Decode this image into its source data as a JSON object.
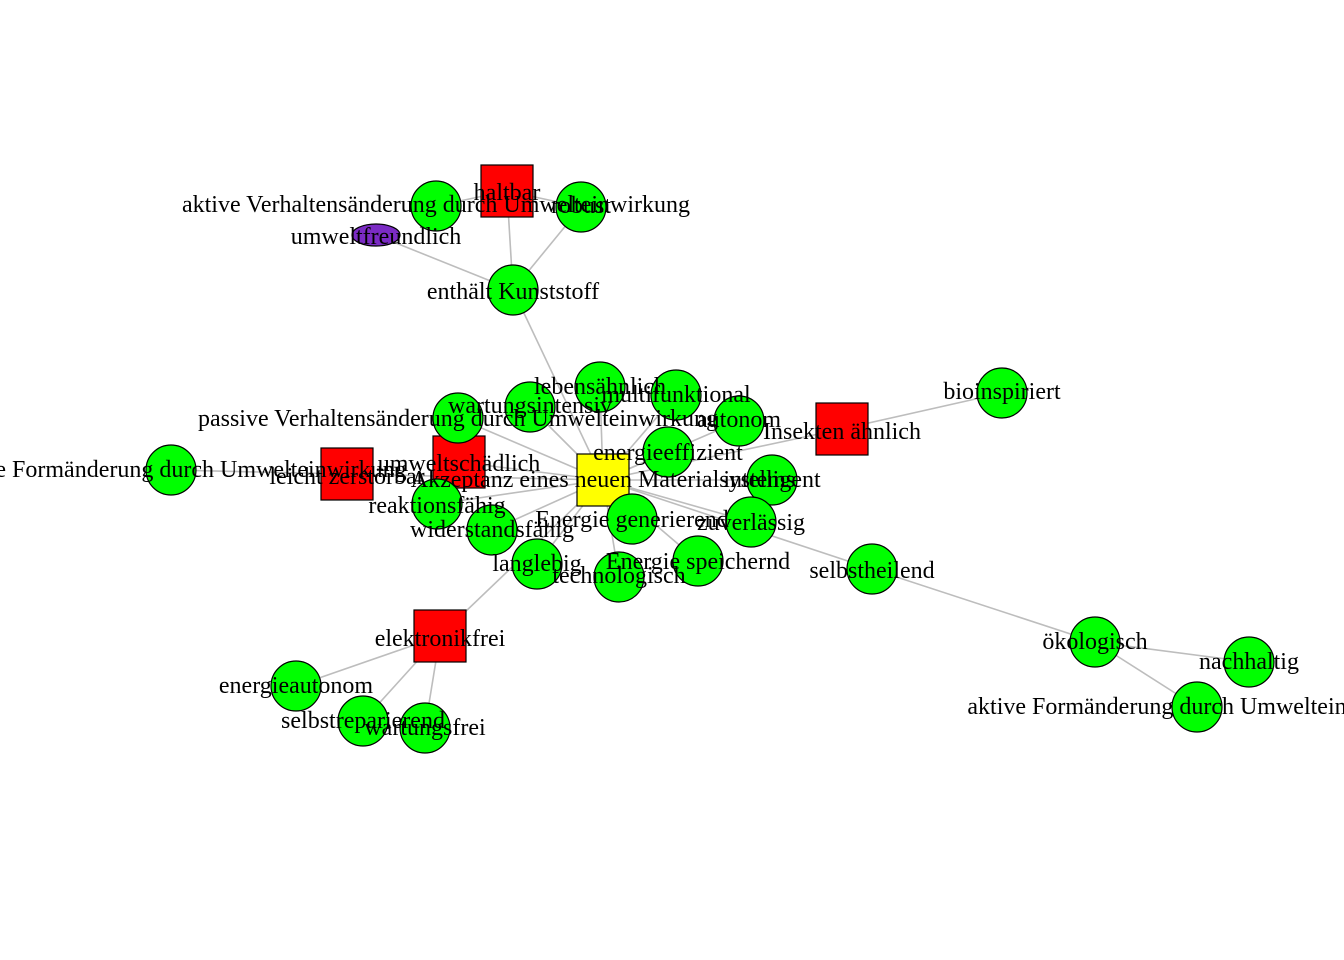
{
  "colors": {
    "property": "#00ff00",
    "criterion": "#ff0000",
    "center": "#ffff00",
    "special": "#7b2bc4",
    "edge": "#bdbdbd"
  },
  "nodes": [
    {
      "id": "center",
      "label": "Akzeptanz eines neuen Materialsystems",
      "kind": "center"
    },
    {
      "id": "haltbar",
      "label": "haltbar",
      "kind": "criterion"
    },
    {
      "id": "umweltschaedlich",
      "label": "umweltschädlich",
      "kind": "criterion"
    },
    {
      "id": "leicht_zerstoerbar",
      "label": "leicht zerstörbar",
      "kind": "criterion"
    },
    {
      "id": "insekten_aehnlich",
      "label": "Insekten ähnlich",
      "kind": "criterion"
    },
    {
      "id": "elektronikfrei",
      "label": "elektronikfrei",
      "kind": "criterion"
    },
    {
      "id": "umweltfreundlich",
      "label": "umweltfreundlich",
      "kind": "special"
    },
    {
      "id": "aktive_verhalten",
      "label": "aktive Verhaltensänderung durch Umwelteinwirkung",
      "kind": "property"
    },
    {
      "id": "robust",
      "label": "robust",
      "kind": "property"
    },
    {
      "id": "enthaelt_kunststoff",
      "label": "enthält Kunststoff",
      "kind": "property"
    },
    {
      "id": "lebensaehnlich",
      "label": "lebensähnlich",
      "kind": "property"
    },
    {
      "id": "multifunktional",
      "label": "multifunktional",
      "kind": "property"
    },
    {
      "id": "wartungsintensiv",
      "label": "wartungsintensiv",
      "kind": "property"
    },
    {
      "id": "passive_verhalten",
      "label": "passive Verhaltensänderung durch Umwelteinwirkung",
      "kind": "property"
    },
    {
      "id": "autonom",
      "label": "autonom",
      "kind": "property"
    },
    {
      "id": "bioinspiriert",
      "label": "bioinspiriert",
      "kind": "property"
    },
    {
      "id": "energieeffizient",
      "label": "energieeffizient",
      "kind": "property"
    },
    {
      "id": "intelligent",
      "label": "intelligent",
      "kind": "property"
    },
    {
      "id": "passive_form",
      "label": "passive Formänderung durch Umwelteinwirkung",
      "kind": "property"
    },
    {
      "id": "reaktionsfaehig",
      "label": "reaktionsfähig",
      "kind": "property"
    },
    {
      "id": "widerstandsfaehig",
      "label": "widerstandsfähig",
      "kind": "property"
    },
    {
      "id": "energie_generierend",
      "label": "Energie generierend",
      "kind": "property"
    },
    {
      "id": "zuverlaessig",
      "label": "zuverlässig",
      "kind": "property"
    },
    {
      "id": "langlebig",
      "label": "langlebig",
      "kind": "property"
    },
    {
      "id": "energie_speichernd",
      "label": "Energie speichernd",
      "kind": "property"
    },
    {
      "id": "technologisch",
      "label": "technologisch",
      "kind": "property"
    },
    {
      "id": "selbstheilend",
      "label": "selbstheilend",
      "kind": "property"
    },
    {
      "id": "oekologisch",
      "label": "ökologisch",
      "kind": "property"
    },
    {
      "id": "nachhaltig",
      "label": "nachhaltig",
      "kind": "property"
    },
    {
      "id": "aktive_form",
      "label": "aktive Formänderung durch Umwelteinwirkung",
      "kind": "property"
    },
    {
      "id": "energieautonom",
      "label": "energieautonom",
      "kind": "property"
    },
    {
      "id": "selbstreparierend",
      "label": "selbstreparierend",
      "kind": "property"
    },
    {
      "id": "wartungsfrei",
      "label": "wartungsfrei",
      "kind": "property"
    }
  ],
  "edges": [
    [
      "center",
      "enthaelt_kunststoff"
    ],
    [
      "enthaelt_kunststoff",
      "haltbar"
    ],
    [
      "enthaelt_kunststoff",
      "robust"
    ],
    [
      "enthaelt_kunststoff",
      "umweltfreundlich"
    ],
    [
      "haltbar",
      "aktive_verhalten"
    ],
    [
      "haltbar",
      "robust"
    ],
    [
      "center",
      "lebensaehnlich"
    ],
    [
      "center",
      "multifunktional"
    ],
    [
      "center",
      "wartungsintensiv"
    ],
    [
      "center",
      "passive_verhalten"
    ],
    [
      "center",
      "autonom"
    ],
    [
      "center",
      "energieeffizient"
    ],
    [
      "center",
      "intelligent"
    ],
    [
      "center",
      "insekten_aehnlich"
    ],
    [
      "insekten_aehnlich",
      "bioinspiriert"
    ],
    [
      "center",
      "umweltschaedlich"
    ],
    [
      "center",
      "leicht_zerstoerbar"
    ],
    [
      "leicht_zerstoerbar",
      "passive_form"
    ],
    [
      "center",
      "reaktionsfaehig"
    ],
    [
      "center",
      "widerstandsfaehig"
    ],
    [
      "center",
      "energie_generierend"
    ],
    [
      "center",
      "zuverlaessig"
    ],
    [
      "center",
      "langlebig"
    ],
    [
      "center",
      "energie_speichernd"
    ],
    [
      "center",
      "technologisch"
    ],
    [
      "center",
      "selbstheilend"
    ],
    [
      "selbstheilend",
      "oekologisch"
    ],
    [
      "oekologisch",
      "nachhaltig"
    ],
    [
      "oekologisch",
      "aktive_form"
    ],
    [
      "center",
      "elektronikfrei"
    ],
    [
      "elektronikfrei",
      "energieautonom"
    ],
    [
      "elektronikfrei",
      "selbstreparierend"
    ],
    [
      "elektronikfrei",
      "wartungsfrei"
    ]
  ]
}
